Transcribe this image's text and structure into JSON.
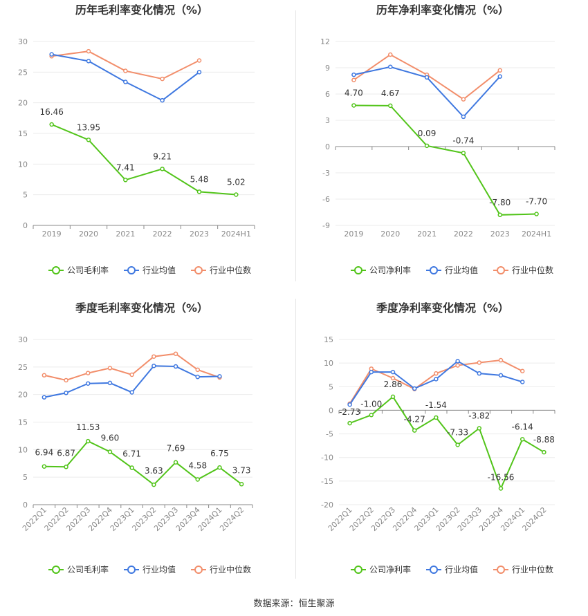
{
  "footer": {
    "source": "数据来源：恒生聚源"
  },
  "legend_labels": {
    "gross": "公司毛利率",
    "net": "公司净利率",
    "avg": "行业均值",
    "median": "行业中位数"
  },
  "colors": {
    "company": "#52c41a",
    "avg": "#3f78e0",
    "median": "#f28e6b"
  },
  "chart_data": [
    {
      "id": "annual-gross",
      "type": "line",
      "title": "历年毛利率变化情况（%）",
      "categories": [
        "2019",
        "2020",
        "2021",
        "2022",
        "2023",
        "2024H1"
      ],
      "yticks": [
        0,
        5,
        10,
        15,
        20,
        25,
        30
      ],
      "ylim": [
        0,
        30
      ],
      "grid": true,
      "legend": "bottom",
      "series": [
        {
          "name": "公司毛利率",
          "values": [
            16.46,
            13.95,
            7.41,
            9.21,
            5.48,
            5.02
          ],
          "labels": [
            "16.46",
            "13.95",
            "7.41",
            "9.21",
            "5.48",
            "5.02"
          ]
        },
        {
          "name": "行业均值",
          "values": [
            27.9,
            26.8,
            23.4,
            20.4,
            25.0,
            null
          ]
        },
        {
          "name": "行业中位数",
          "values": [
            27.6,
            28.4,
            25.2,
            23.9,
            26.9,
            null
          ]
        }
      ]
    },
    {
      "id": "annual-net",
      "type": "line",
      "title": "历年净利率变化情况（%）",
      "categories": [
        "2019",
        "2020",
        "2021",
        "2022",
        "2023",
        "2024H1"
      ],
      "yticks": [
        -9,
        -6,
        -3,
        0,
        3,
        6,
        9,
        12
      ],
      "ylim": [
        -9,
        12
      ],
      "grid": true,
      "legend": "bottom",
      "series": [
        {
          "name": "公司净利率",
          "values": [
            4.7,
            4.67,
            0.09,
            -0.74,
            -7.8,
            -7.7
          ],
          "labels": [
            "4.70",
            "4.67",
            "0.09",
            "-0.74",
            "-7.80",
            "-7.70"
          ]
        },
        {
          "name": "行业均值",
          "values": [
            8.2,
            9.1,
            7.9,
            3.4,
            8.0,
            null
          ]
        },
        {
          "name": "行业中位数",
          "values": [
            7.6,
            10.5,
            8.2,
            5.4,
            8.7,
            null
          ]
        }
      ]
    },
    {
      "id": "quarterly-gross",
      "type": "line",
      "title": "季度毛利率变化情况（%）",
      "categories": [
        "2022Q1",
        "2022Q2",
        "2022Q3",
        "2022Q4",
        "2023Q1",
        "2023Q2",
        "2023Q3",
        "2023Q4",
        "2024Q1",
        "2024Q2"
      ],
      "yticks": [
        0,
        5,
        10,
        15,
        20,
        25,
        30
      ],
      "ylim": [
        0,
        30
      ],
      "grid": true,
      "legend": "bottom",
      "series": [
        {
          "name": "公司毛利率",
          "values": [
            6.94,
            6.87,
            11.53,
            9.6,
            6.71,
            3.63,
            7.69,
            4.58,
            6.75,
            3.73
          ],
          "labels": [
            "6.94",
            "6.87",
            "11.53",
            "9.60",
            "6.71",
            "3.63",
            "7.69",
            "4.58",
            "6.75",
            "3.73"
          ]
        },
        {
          "name": "行业均值",
          "values": [
            19.5,
            20.3,
            22.0,
            22.1,
            20.4,
            25.2,
            25.1,
            23.2,
            23.3,
            null
          ]
        },
        {
          "name": "行业中位数",
          "values": [
            23.5,
            22.6,
            23.9,
            24.8,
            23.6,
            26.9,
            27.4,
            24.5,
            23.1,
            null
          ]
        }
      ]
    },
    {
      "id": "quarterly-net",
      "type": "line",
      "title": "季度净利率变化情况（%）",
      "categories": [
        "2022Q1",
        "2022Q2",
        "2022Q3",
        "2022Q4",
        "2023Q1",
        "2023Q2",
        "2023Q3",
        "2023Q4",
        "2024Q1",
        "2024Q2"
      ],
      "yticks": [
        -20,
        -15,
        -10,
        -5,
        0,
        5,
        10,
        15
      ],
      "ylim": [
        -20,
        15
      ],
      "grid": true,
      "legend": "bottom",
      "series": [
        {
          "name": "公司净利率",
          "values": [
            -2.73,
            -1.0,
            2.86,
            -4.27,
            -1.54,
            -7.33,
            -3.82,
            -16.56,
            -6.14,
            -8.88
          ],
          "labels": [
            "-2.73",
            "-1.00",
            "2.86",
            "-4.27",
            "-1.54",
            "-7.33",
            "-3.82",
            "-16.56",
            "-6.14",
            "-8.88"
          ]
        },
        {
          "name": "行业均值",
          "values": [
            1.2,
            8.1,
            8.1,
            4.6,
            6.6,
            10.4,
            7.8,
            7.4,
            6.0,
            null
          ]
        },
        {
          "name": "行业中位数",
          "values": [
            1.4,
            8.8,
            6.8,
            4.5,
            7.8,
            9.5,
            10.1,
            10.6,
            8.3,
            null
          ]
        }
      ]
    }
  ]
}
